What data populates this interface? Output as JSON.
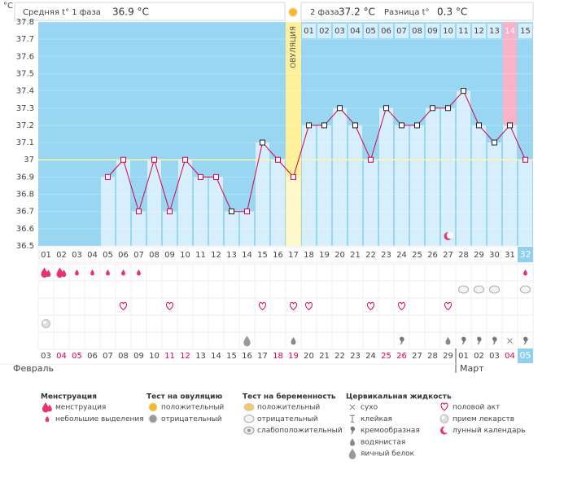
{
  "header": {
    "unit": "°C",
    "phase1": "Средняя t° 1 фаза",
    "phase1_value": "36.9 °C",
    "phase2": "2 фаза",
    "phase2_value": "37.2 °C",
    "diff": "Разница t°",
    "diff_value": "0.3 °C"
  },
  "chart_data": {
    "type": "line",
    "color": "#d6004f",
    "categories": [
      "01",
      "02",
      "03",
      "04",
      "05",
      "06",
      "07",
      "08",
      "09",
      "10",
      "11",
      "12",
      "13",
      "14",
      "15",
      "16",
      "17",
      "18",
      "19",
      "20",
      "21",
      "22",
      "23",
      "24",
      "25",
      "26",
      "27",
      "28",
      "29",
      "30",
      "31",
      "32"
    ],
    "values": [
      null,
      null,
      null,
      null,
      36.9,
      37.0,
      36.7,
      37.0,
      36.7,
      37.0,
      36.9,
      36.9,
      36.7,
      36.7,
      37.1,
      37.0,
      36.9,
      37.2,
      37.2,
      37.3,
      37.2,
      37.0,
      37.3,
      37.2,
      37.2,
      37.3,
      37.3,
      37.4,
      37.2,
      37.1,
      37.2,
      37.0
    ],
    "ylim": [
      36.5,
      37.8
    ],
    "yticks": [
      36.5,
      36.6,
      36.7,
      36.8,
      36.9,
      37,
      37.1,
      37.2,
      37.3,
      37.4,
      37.5,
      37.6,
      37.7,
      37.8
    ],
    "coverline": 37,
    "ovulation": {
      "label": "ОВУЛЯЦИЯ",
      "day": "17"
    },
    "luteal_days": [
      null,
      null,
      null,
      null,
      null,
      null,
      null,
      null,
      null,
      null,
      null,
      null,
      null,
      null,
      null,
      null,
      null,
      "01",
      "02",
      "03",
      "04",
      "05",
      "06",
      "07",
      "08",
      "09",
      "10",
      "11",
      "12",
      "13",
      "14",
      "15"
    ],
    "highlight_luteal": "14",
    "current_day": "32"
  },
  "calendar": {
    "dates": [
      "03",
      "04",
      "05",
      "06",
      "07",
      "08",
      "09",
      "10",
      "11",
      "12",
      "13",
      "14",
      "15",
      "16",
      "17",
      "18",
      "19",
      "20",
      "21",
      "22",
      "23",
      "24",
      "25",
      "26",
      "27",
      "28",
      "29",
      "01",
      "02",
      "03",
      "04",
      "05"
    ],
    "weekend": [
      false,
      true,
      true,
      false,
      false,
      false,
      false,
      false,
      true,
      true,
      false,
      false,
      false,
      false,
      false,
      true,
      true,
      false,
      false,
      false,
      false,
      false,
      true,
      true,
      false,
      false,
      false,
      false,
      false,
      false,
      true,
      false
    ],
    "months": [
      "Февраль",
      "Март"
    ],
    "month_start": "01"
  },
  "symbols": [
    [
      "drop",
      "drop",
      "small-drop",
      "small-drop",
      "small-drop",
      "small-drop",
      "small-drop",
      null,
      null,
      null,
      null,
      null,
      null,
      null,
      null,
      null,
      null,
      null,
      null,
      null,
      null,
      null,
      null,
      null,
      null,
      null,
      null,
      null,
      null,
      null,
      null,
      "small-drop"
    ],
    [
      null,
      null,
      null,
      null,
      null,
      null,
      null,
      null,
      null,
      null,
      null,
      null,
      null,
      null,
      null,
      null,
      null,
      null,
      null,
      null,
      null,
      null,
      null,
      null,
      null,
      null,
      null,
      "oval",
      "oval",
      "oval",
      null,
      "oval"
    ],
    [
      null,
      null,
      null,
      null,
      null,
      "heart",
      null,
      null,
      "heart",
      null,
      null,
      null,
      null,
      null,
      "heart",
      null,
      "heart",
      "heart",
      null,
      null,
      null,
      "heart",
      null,
      "heart",
      null,
      null,
      "heart",
      null,
      null,
      null,
      null,
      null
    ],
    [
      "pill",
      null,
      null,
      null,
      null,
      null,
      null,
      null,
      null,
      null,
      null,
      null,
      null,
      null,
      null,
      null,
      null,
      null,
      null,
      null,
      null,
      null,
      null,
      null,
      null,
      null,
      null,
      null,
      null,
      null,
      null,
      null
    ],
    [
      null,
      null,
      null,
      null,
      null,
      null,
      null,
      null,
      null,
      null,
      null,
      null,
      null,
      "egg-drop",
      null,
      null,
      "water-drop",
      null,
      null,
      null,
      null,
      null,
      null,
      "comma",
      null,
      null,
      "water-drop",
      "comma",
      "comma",
      "comma",
      "cross",
      "comma"
    ]
  ],
  "moon_day": "27",
  "legend": [
    {
      "title": "Менструация",
      "items": [
        {
          "label": "менструация",
          "icon": "drop"
        },
        {
          "label": "небольшие выделения",
          "icon": "small-drop"
        }
      ]
    },
    {
      "title": "Тест на овуляцию",
      "items": [
        {
          "label": "положительный",
          "icon": "circle-orange"
        },
        {
          "label": "отрицательный",
          "icon": "circle-grey"
        }
      ]
    },
    {
      "title": "Тест на беременность",
      "items": [
        {
          "label": "положительный",
          "icon": "oval-orange"
        },
        {
          "label": "отрицательный",
          "icon": "oval"
        },
        {
          "label": "слабоположительный",
          "icon": "oval-swirl"
        }
      ]
    },
    {
      "title": "Цервикальная жидкость",
      "items": [
        {
          "label": "сухо",
          "icon": "cross"
        },
        {
          "label": "клейкая",
          "icon": "tee"
        },
        {
          "label": "кремообразная",
          "icon": "comma"
        },
        {
          "label": "водянистая",
          "icon": "water-drop"
        },
        {
          "label": "яичный белок",
          "icon": "egg-drop"
        }
      ]
    },
    {
      "items": [
        {
          "label": "половой акт",
          "icon": "heart"
        },
        {
          "label": "прием лекарств",
          "icon": "pill"
        },
        {
          "label": "лунный календарь",
          "icon": "moon"
        }
      ]
    }
  ]
}
